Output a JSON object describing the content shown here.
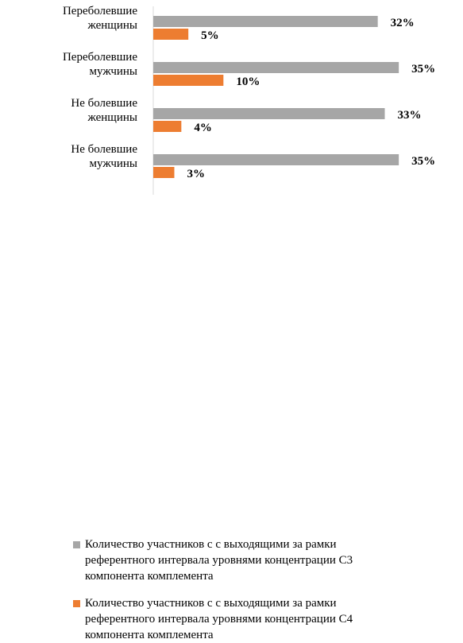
{
  "chart_data": {
    "type": "bar",
    "orientation": "horizontal",
    "categories": [
      "Переболевшие женщины",
      "Переболевшие мужчины",
      "Не болевшие женщины",
      "Не болевшие мужчины"
    ],
    "category_lines": [
      [
        "Переболевшие",
        "женщины"
      ],
      [
        "Переболевшие",
        "мужчины"
      ],
      [
        "Не болевшие",
        "женщины"
      ],
      [
        "Не болевшие",
        "мужчины"
      ]
    ],
    "series": [
      {
        "name": "Количество участников с с выходящими за рамки референтного интервала уровнями концентрации С3 компонента комплемента",
        "values": [
          32,
          35,
          33,
          35
        ],
        "labels": [
          "32%",
          "35%",
          "33%",
          "35%"
        ],
        "color": "#a6a6a6"
      },
      {
        "name": "Количество участников с с выходящими за рамки референтного интервала уровнями концентрации С4 компонента комплемента",
        "values": [
          5,
          10,
          4,
          3
        ],
        "labels": [
          "5%",
          "10%",
          "4%",
          "3%"
        ],
        "color": "#ed7d31"
      }
    ],
    "xlim": [
      0,
      36
    ],
    "unit": "%",
    "grid": false,
    "legend_position": "bottom"
  },
  "legend": {
    "c3_text": "Количество участников с с выходящими за рамки\nреферентного интервала уровнями концентрации С3\nкомпонента комплемента",
    "c4_text": "Количество участников с с выходящими за рамки\nреферентного интервала уровнями концентрации С4\nкомпонента комплемента"
  }
}
